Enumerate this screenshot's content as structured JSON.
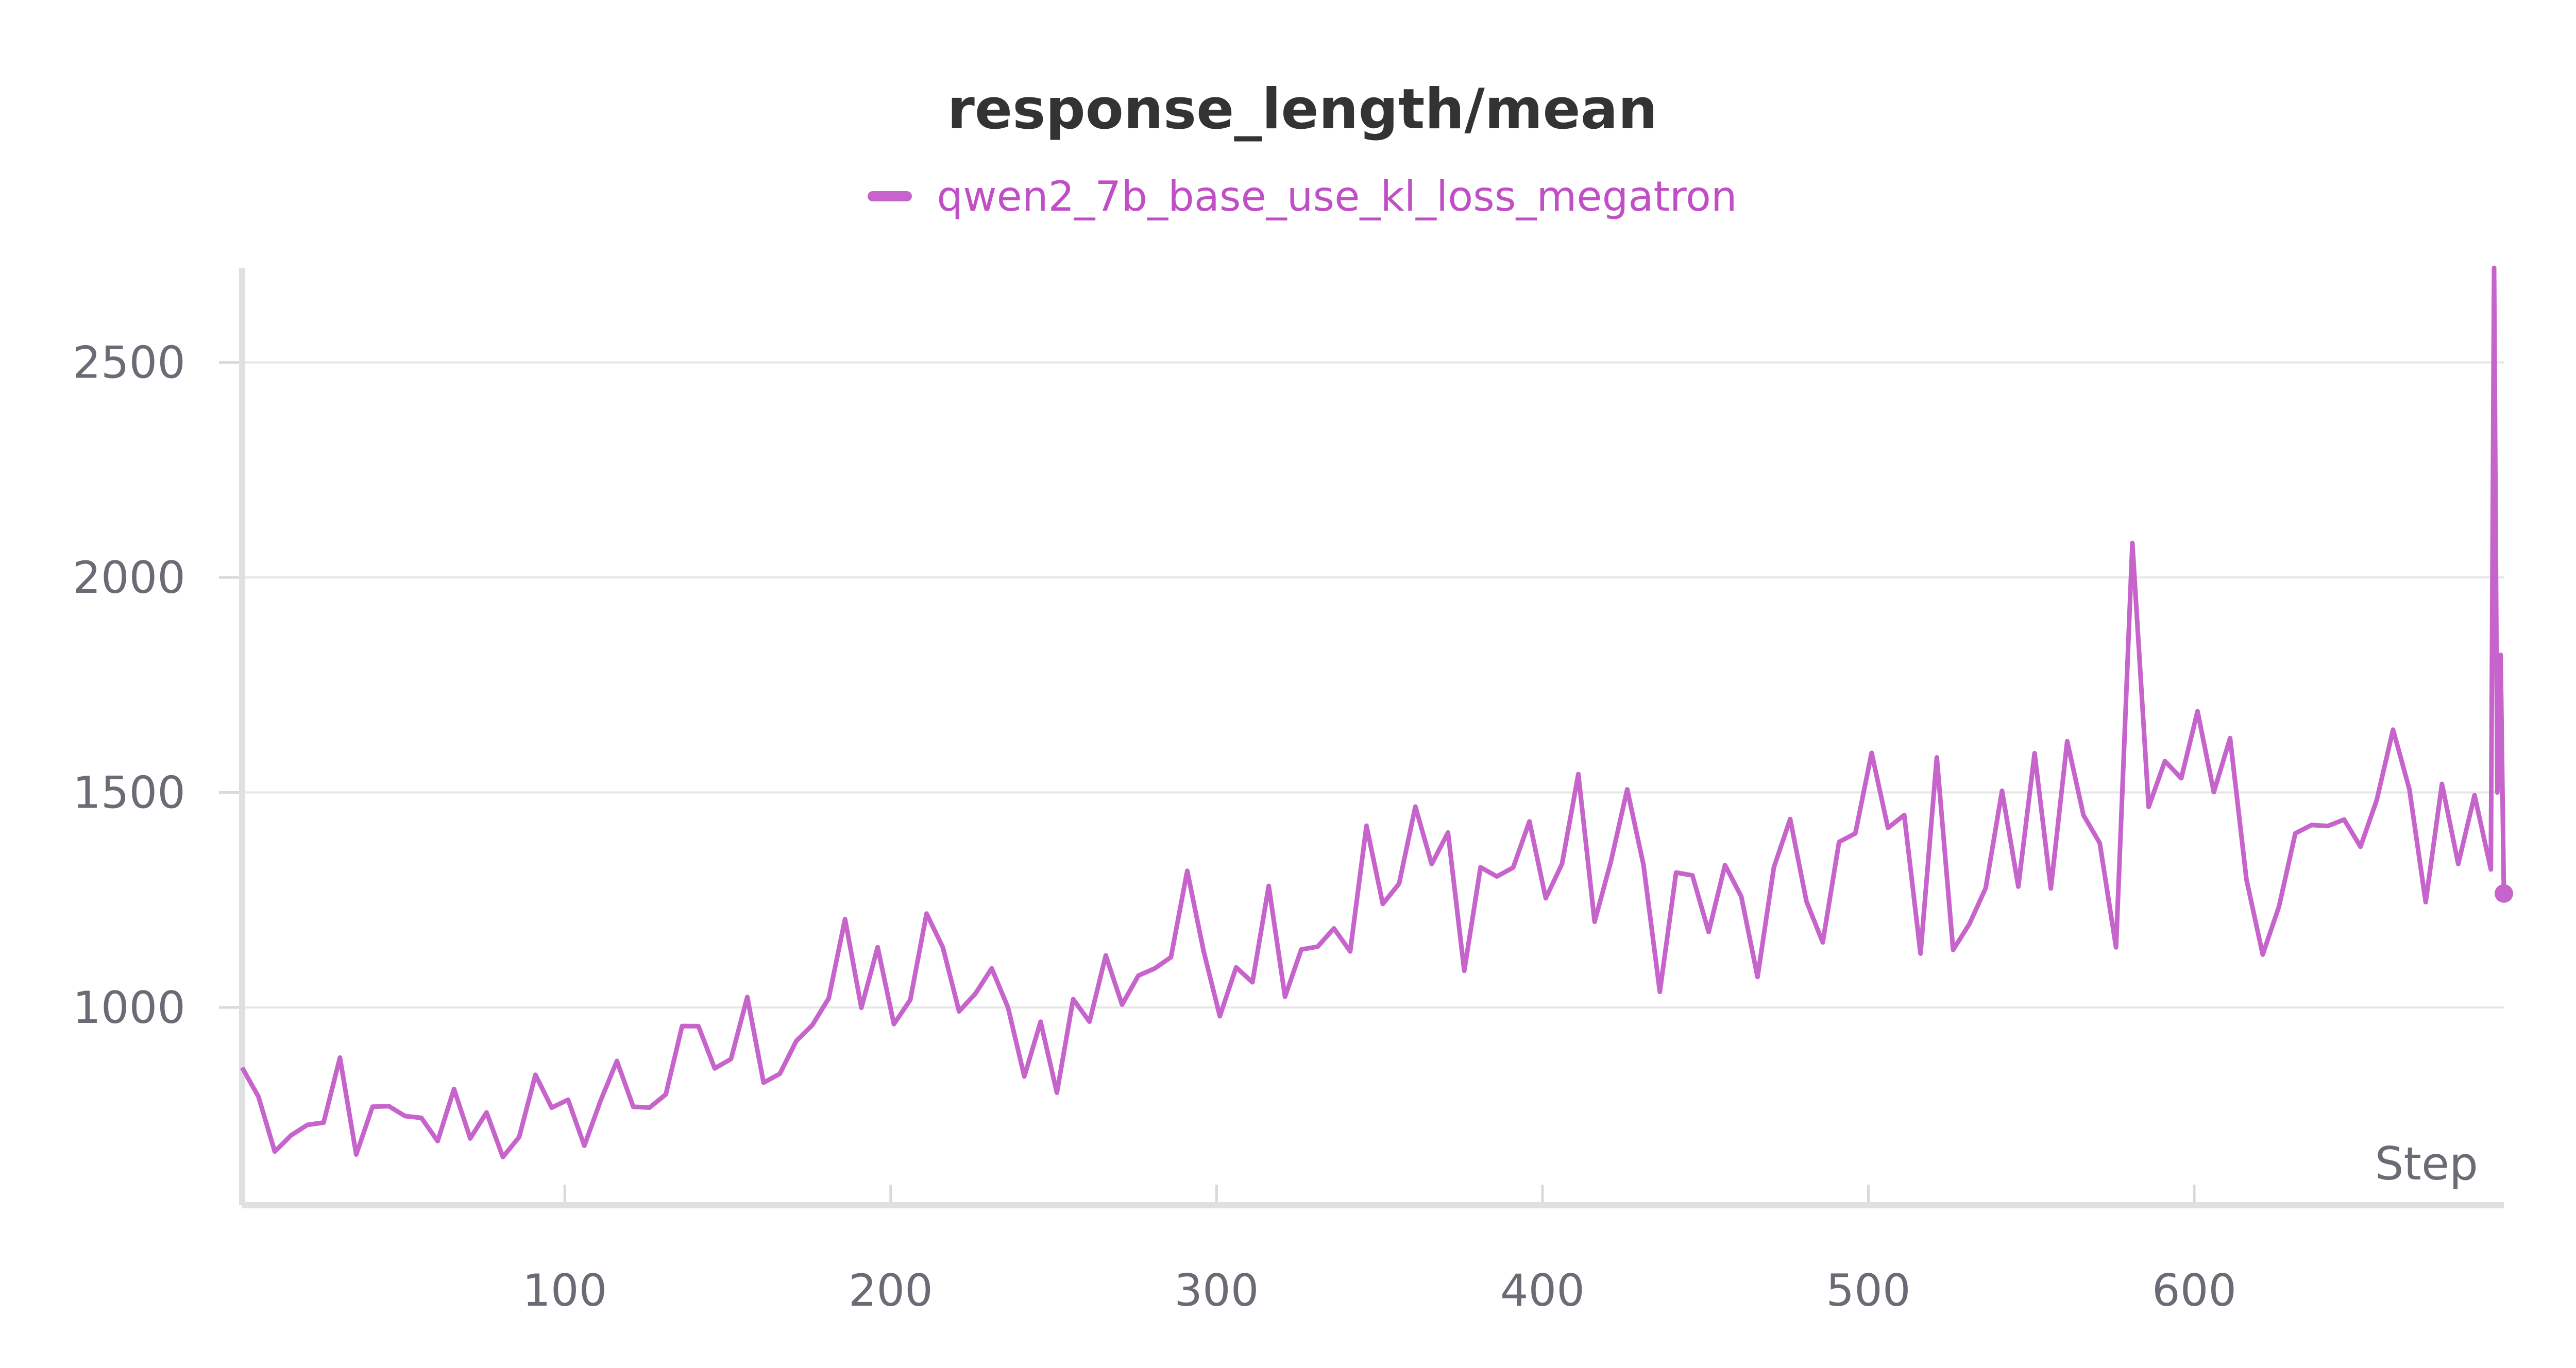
{
  "chart_data": {
    "type": "line",
    "title": "response_length/mean",
    "xlabel": "Step",
    "ylabel": "",
    "xlim": [
      1,
      695
    ],
    "ylim": [
      540,
      2720
    ],
    "x_ticks": [
      100,
      200,
      300,
      400,
      500,
      600
    ],
    "y_ticks": [
      1000,
      1500,
      2000,
      2500
    ],
    "grid": true,
    "legend_placement": "top-center",
    "series": [
      {
        "name": "qwen2_7b_base_use_kl_loss_megatron",
        "color": "#c664cc",
        "x_start": 1,
        "x_step": 5,
        "values": [
          860,
          760,
          700,
          680,
          650,
          700,
          840,
          720,
          700,
          730,
          690,
          700,
          720,
          750,
          760,
          740,
          700,
          760,
          780,
          700,
          720,
          760,
          790,
          820,
          800,
          820,
          830,
          850,
          860,
          880,
          900,
          930,
          920,
          950,
          980,
          1000,
          1020,
          1040,
          1010,
          1050,
          1060,
          1040,
          1080,
          1030,
          1060,
          1020,
          980,
          940,
          960,
          940,
          920,
          960,
          1000,
          1050,
          1100,
          1120,
          1130,
          1150,
          1140,
          1160,
          1180,
          1200,
          1220,
          1210,
          1250,
          1230,
          1240,
          1220,
          1260,
          1280,
          1250,
          1270,
          1300,
          1280,
          1310,
          1320,
          1300,
          1330,
          1320,
          1350,
          1360,
          1340,
          1320,
          1350,
          1330,
          1310,
          1280,
          1260,
          1250,
          1240,
          1220,
          1200,
          1180,
          1160,
          1200,
          1220,
          1250,
          1300,
          1350,
          1320,
          1400,
          1380,
          1350,
          1330,
          1360,
          1340,
          1320,
          1300,
          1350,
          1380,
          1400,
          1420,
          1450,
          1500,
          1420,
          1400,
          1380,
          1360,
          1400,
          1380,
          1420,
          1450,
          1430,
          1400,
          1380,
          1360,
          1390,
          1350,
          1330,
          1350,
          1380,
          1400,
          1420,
          1410,
          1450,
          1480,
          1500,
          1400,
          1350,
          1330
        ]
      }
    ],
    "notable_points": {
      "spike_at_580": 2080,
      "spike_at_692": 2720,
      "last_point": {
        "x": 695,
        "y": 1265
      }
    }
  }
}
